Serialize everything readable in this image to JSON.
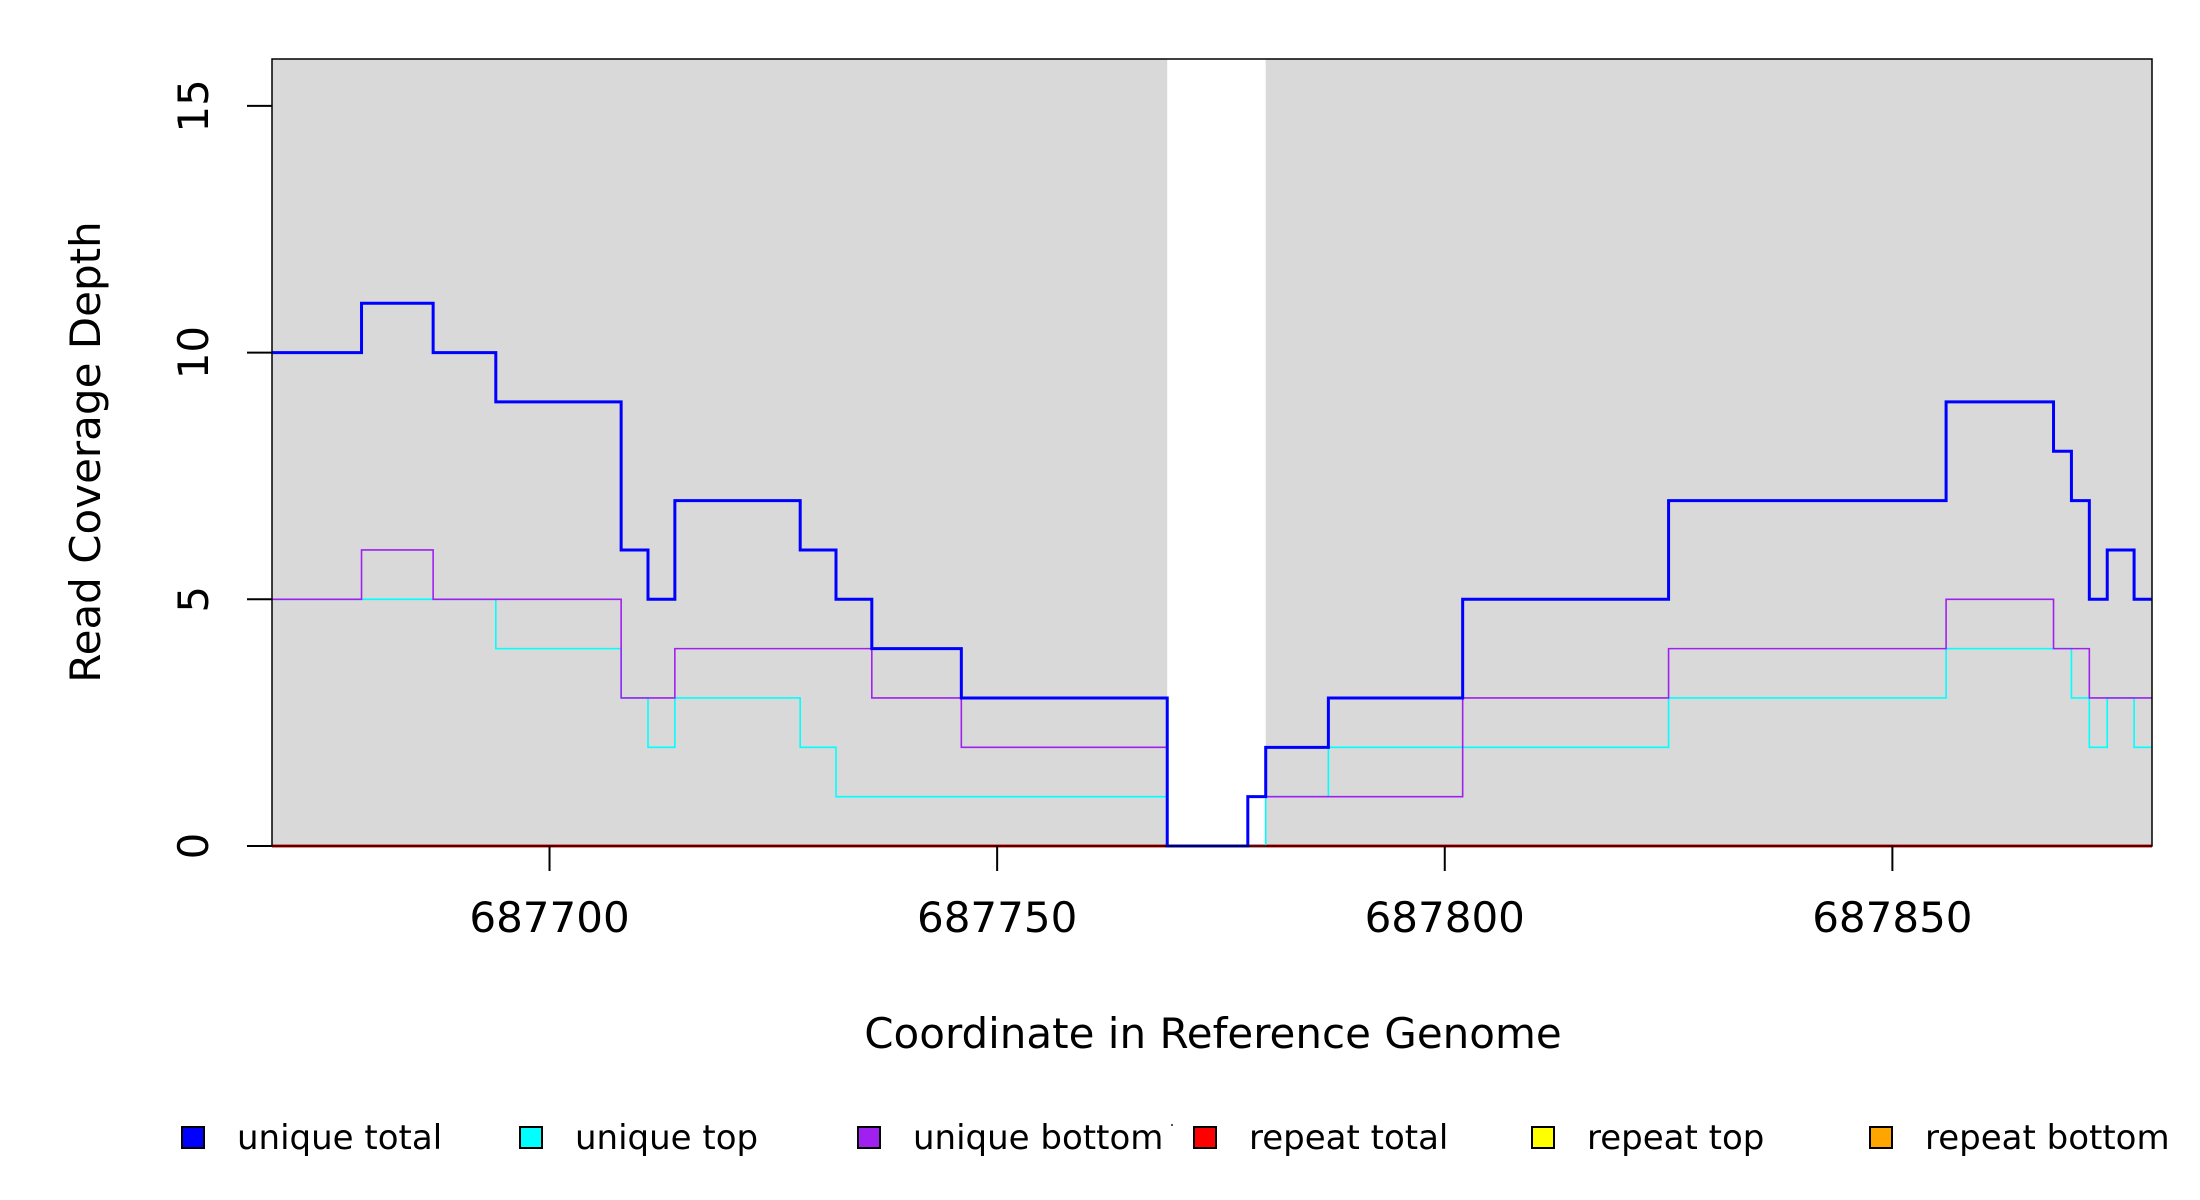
{
  "chart_data": {
    "type": "line",
    "title": "",
    "xlabel": "Coordinate in Reference Genome",
    "ylabel": "Read Coverage Depth",
    "xlim": [
      687669,
      687879
    ],
    "ylim": [
      0,
      15.95
    ],
    "xticks": [
      "687700",
      "687750",
      "687800",
      "687850"
    ],
    "xtick_values": [
      687700,
      687750,
      687800,
      687850
    ],
    "yticks": [
      "0",
      "5",
      "10",
      "15"
    ],
    "ytick_values": [
      0,
      5,
      10,
      15
    ],
    "background": "#d9d9d9",
    "gap": [
      687769,
      687780
    ],
    "step_breaks": [
      687669,
      687679,
      687687,
      687694,
      687708,
      687711,
      687714,
      687728,
      687732,
      687736,
      687746,
      687769,
      687778,
      687780,
      687787,
      687802,
      687825,
      687856,
      687868,
      687870,
      687872,
      687874,
      687877,
      687879
    ],
    "series": [
      {
        "name": "unique total",
        "color": "#0000ff",
        "values": [
          10,
          11,
          10,
          9,
          6,
          5,
          7,
          6,
          5,
          4,
          3,
          0,
          1,
          2,
          3,
          5,
          7,
          9,
          8,
          7,
          5,
          6,
          5
        ]
      },
      {
        "name": "unique top",
        "color": "#00ffff",
        "values": [
          5,
          5,
          5,
          4,
          3,
          2,
          3,
          2,
          1,
          1,
          1,
          0,
          0,
          1,
          2,
          2,
          3,
          4,
          4,
          3,
          2,
          3,
          2
        ]
      },
      {
        "name": "unique bottom",
        "color": "#a020f0",
        "values": [
          5,
          6,
          5,
          5,
          3,
          3,
          4,
          4,
          4,
          3,
          2,
          0,
          1,
          1,
          1,
          3,
          4,
          5,
          4,
          4,
          3,
          3,
          3
        ]
      },
      {
        "name": "repeat total",
        "color": "#ff0000",
        "values": [
          0,
          0,
          0,
          0,
          0,
          0,
          0,
          0,
          0,
          0,
          0,
          0,
          0,
          0,
          0,
          0,
          0,
          0,
          0,
          0,
          0,
          0,
          0
        ]
      },
      {
        "name": "repeat top",
        "color": "#ffff00",
        "values": [
          0,
          0,
          0,
          0,
          0,
          0,
          0,
          0,
          0,
          0,
          0,
          0,
          0,
          0,
          0,
          0,
          0,
          0,
          0,
          0,
          0,
          0,
          0
        ]
      },
      {
        "name": "repeat bottom",
        "color": "#ffa500",
        "values": [
          0,
          0,
          0,
          0,
          0,
          0,
          0,
          0,
          0,
          0,
          0,
          0,
          0,
          0,
          0,
          0,
          0,
          0,
          0,
          0,
          0,
          0,
          0
        ]
      }
    ],
    "legend": {
      "placement": "bottom",
      "labels": [
        "unique total",
        "unique top",
        "unique bottom",
        "repeat total",
        "repeat top",
        "repeat bottom"
      ]
    }
  }
}
